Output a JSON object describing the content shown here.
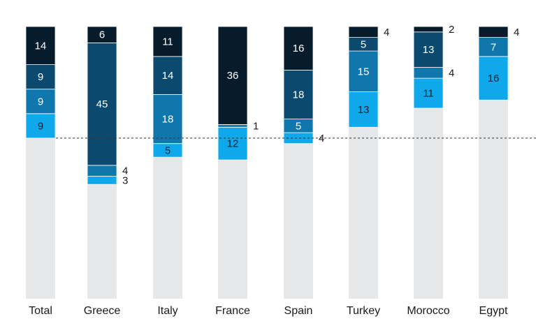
{
  "chart_data": {
    "type": "bar",
    "stacked": true,
    "categories": [
      "Total",
      "Greece",
      "Italy",
      "France",
      "Spain",
      "Turkey",
      "Morocco",
      "Egypt"
    ],
    "series": [
      {
        "values": [
          9,
          3,
          5,
          12,
          4,
          13,
          11,
          16
        ],
        "color": "#0fa8ea"
      },
      {
        "values": [
          9,
          4,
          18,
          1,
          5,
          15,
          4,
          7
        ],
        "color": "#1077ad"
      },
      {
        "values": [
          9,
          45,
          14,
          0,
          18,
          5,
          13,
          0
        ],
        "color": "#0b4a6e"
      },
      {
        "values": [
          14,
          6,
          11,
          36,
          16,
          4,
          2,
          4
        ],
        "color": "#061b2c"
      }
    ],
    "remainder_color": "#e6e7e9",
    "total": 100,
    "reference_line": {
      "value": 59,
      "style": "dashed"
    },
    "grid": false,
    "legend": "none"
  }
}
